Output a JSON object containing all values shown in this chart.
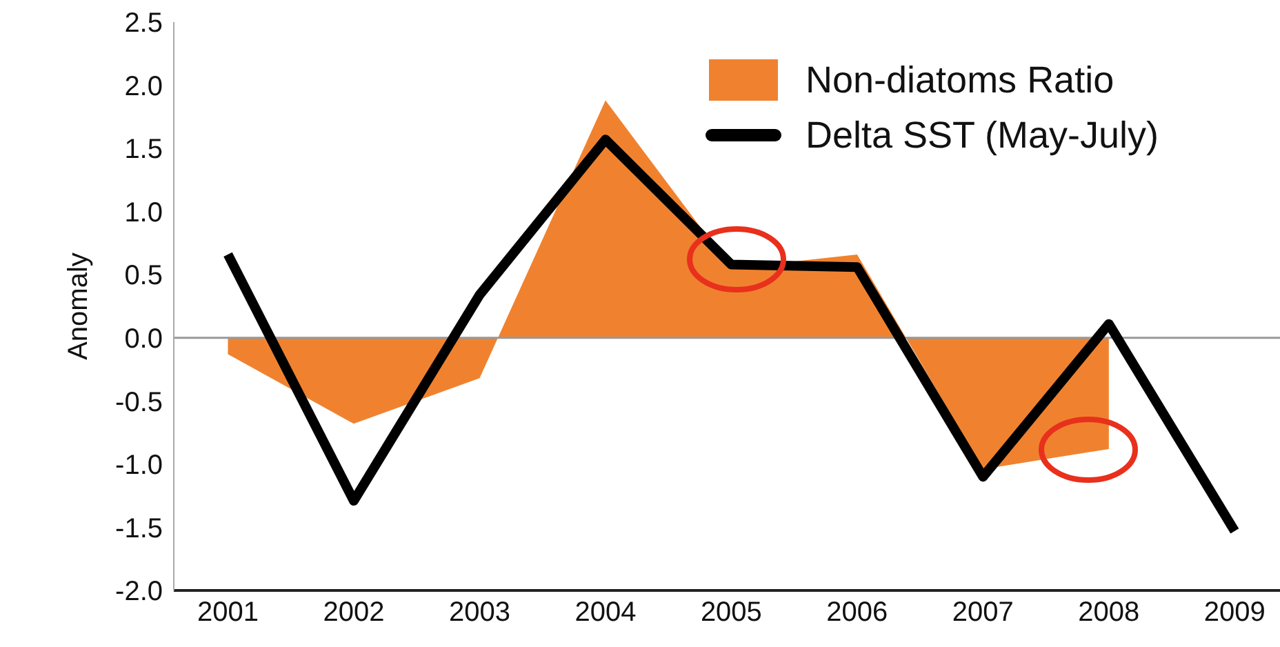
{
  "chart_data": {
    "type": "line",
    "ylabel": "Anomaly",
    "categories": [
      "2001",
      "2002",
      "2003",
      "2004",
      "2005",
      "2006",
      "2007",
      "2008",
      "2009"
    ],
    "series": [
      {
        "name": "Non-diatoms Ratio",
        "type": "area",
        "color": "#f0822f",
        "values": [
          -0.13,
          -0.68,
          -0.32,
          1.88,
          0.55,
          0.66,
          -1.04,
          -0.88,
          null
        ]
      },
      {
        "name": "Delta SST (May-July)",
        "color": "#000000",
        "values": [
          0.66,
          -1.29,
          0.34,
          1.57,
          0.58,
          0.56,
          -1.1,
          0.11,
          -1.53
        ]
      }
    ],
    "ylim": [
      -2.0,
      2.5
    ],
    "yticks": [
      {
        "value": -2.0,
        "label": "-2.0"
      },
      {
        "value": -1.5,
        "label": "-1.5"
      },
      {
        "value": -1.0,
        "label": "-1.0"
      },
      {
        "value": -0.5,
        "label": "-0.5"
      },
      {
        "value": 0,
        "label": "0.0"
      },
      {
        "value": 0.5,
        "label": "0.5"
      },
      {
        "value": 1.0,
        "label": "1.0"
      },
      {
        "value": 1.5,
        "label": "1.5"
      },
      {
        "value": 2.0,
        "label": "2.0"
      },
      {
        "value": 2.5,
        "label": "2.5"
      }
    ],
    "ref_lines": [
      {
        "axis": "y",
        "value": 0,
        "color": "#999999"
      }
    ],
    "grid": false,
    "legend": "top right",
    "marker": "none",
    "line_style": "solid"
  }
}
